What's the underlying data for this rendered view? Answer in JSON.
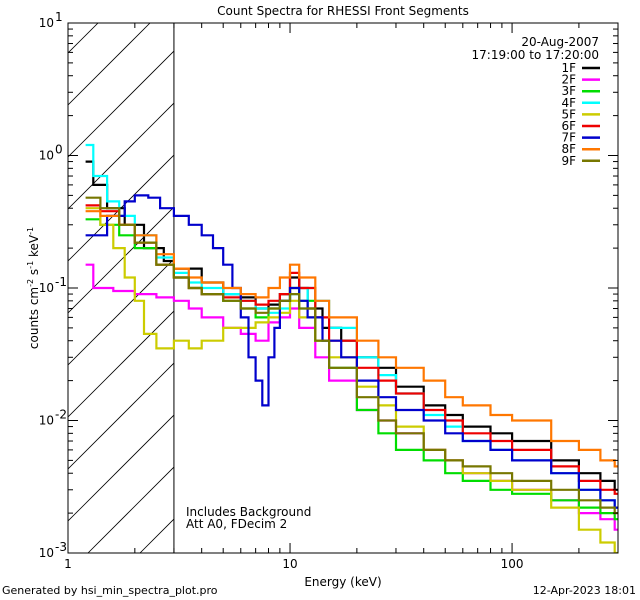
{
  "chart_data": {
    "type": "line",
    "title": "Count Spectra for RHESSI Front Segments",
    "xlabel": "Energy (keV)",
    "ylabel_parts": [
      "counts cm",
      "-2",
      " s",
      "-1",
      " keV",
      "-1"
    ],
    "xscale": "log",
    "yscale": "log",
    "xlim": [
      1,
      300
    ],
    "ylim": [
      0.001,
      10
    ],
    "x_ticks": [
      {
        "v": 1,
        "label": "1"
      },
      {
        "v": 10,
        "label": "10"
      },
      {
        "v": 100,
        "label": "100"
      }
    ],
    "y_ticks": [
      {
        "v": 0.001,
        "base": "10",
        "exp": "-3"
      },
      {
        "v": 0.01,
        "base": "10",
        "exp": "-2"
      },
      {
        "v": 0.1,
        "base": "10",
        "exp": "-1"
      },
      {
        "v": 1,
        "base": "10",
        "exp": "0"
      },
      {
        "v": 10,
        "base": "10",
        "exp": "1"
      }
    ],
    "shaded_region": {
      "x": [
        1,
        3
      ],
      "style": "diagonal-hatch"
    },
    "date": "20-Aug-2007",
    "time_range": "17:19:00 to 17:20:00",
    "annotations": [
      "Includes Background",
      "Att A0, FDecim 2"
    ],
    "series": [
      {
        "name": "1F",
        "color": "#000000",
        "points": [
          [
            1.2,
            0.9
          ],
          [
            1.3,
            0.6
          ],
          [
            1.5,
            0.4
          ],
          [
            1.8,
            0.3
          ],
          [
            2.2,
            0.2
          ],
          [
            2.7,
            0.16
          ],
          [
            3,
            0.14
          ],
          [
            4,
            0.11
          ],
          [
            5,
            0.09
          ],
          [
            6,
            0.085
          ],
          [
            7,
            0.07
          ],
          [
            8,
            0.075
          ],
          [
            9,
            0.09
          ],
          [
            10,
            0.12
          ],
          [
            11,
            0.1
          ],
          [
            12,
            0.07
          ],
          [
            14,
            0.05
          ],
          [
            17,
            0.04
          ],
          [
            20,
            0.03
          ],
          [
            25,
            0.025
          ],
          [
            30,
            0.018
          ],
          [
            40,
            0.013
          ],
          [
            50,
            0.011
          ],
          [
            60,
            0.009
          ],
          [
            80,
            0.008
          ],
          [
            100,
            0.007
          ],
          [
            150,
            0.005
          ],
          [
            200,
            0.004
          ],
          [
            250,
            0.0035
          ],
          [
            290,
            0.003
          ]
        ]
      },
      {
        "name": "2F",
        "color": "#ff00ff",
        "points": [
          [
            1.2,
            0.15
          ],
          [
            1.3,
            0.1
          ],
          [
            1.6,
            0.095
          ],
          [
            2,
            0.09
          ],
          [
            2.5,
            0.085
          ],
          [
            3,
            0.08
          ],
          [
            3.5,
            0.07
          ],
          [
            4,
            0.06
          ],
          [
            5,
            0.05
          ],
          [
            6,
            0.045
          ],
          [
            7,
            0.04
          ],
          [
            8,
            0.055
          ],
          [
            9,
            0.06
          ],
          [
            10,
            0.07
          ],
          [
            11,
            0.05
          ],
          [
            13,
            0.03
          ],
          [
            15,
            0.02
          ],
          [
            20,
            0.012
          ],
          [
            25,
            0.01
          ],
          [
            30,
            0.008
          ],
          [
            40,
            0.006
          ],
          [
            50,
            0.005
          ],
          [
            60,
            0.004
          ],
          [
            80,
            0.0035
          ],
          [
            100,
            0.003
          ],
          [
            150,
            0.0025
          ],
          [
            200,
            0.002
          ],
          [
            250,
            0.0018
          ],
          [
            290,
            0.0015
          ]
        ]
      },
      {
        "name": "3F",
        "color": "#00dd00",
        "points": [
          [
            1.2,
            0.33
          ],
          [
            1.4,
            0.3
          ],
          [
            1.7,
            0.25
          ],
          [
            2,
            0.2
          ],
          [
            2.5,
            0.15
          ],
          [
            3,
            0.12
          ],
          [
            3.5,
            0.1
          ],
          [
            4,
            0.09
          ],
          [
            5,
            0.08
          ],
          [
            6,
            0.07
          ],
          [
            7,
            0.06
          ],
          [
            8,
            0.07
          ],
          [
            9,
            0.08
          ],
          [
            10,
            0.1
          ],
          [
            11,
            0.08
          ],
          [
            13,
            0.04
          ],
          [
            15,
            0.025
          ],
          [
            20,
            0.012
          ],
          [
            25,
            0.008
          ],
          [
            30,
            0.006
          ],
          [
            40,
            0.005
          ],
          [
            50,
            0.004
          ],
          [
            60,
            0.0035
          ],
          [
            80,
            0.003
          ],
          [
            100,
            0.0028
          ],
          [
            150,
            0.0025
          ],
          [
            200,
            0.0022
          ],
          [
            250,
            0.002
          ],
          [
            290,
            0.0018
          ]
        ]
      },
      {
        "name": "4F",
        "color": "#00ffff",
        "points": [
          [
            1.2,
            1.2
          ],
          [
            1.3,
            0.7
          ],
          [
            1.5,
            0.45
          ],
          [
            1.7,
            0.35
          ],
          [
            2,
            0.25
          ],
          [
            2.5,
            0.17
          ],
          [
            3,
            0.13
          ],
          [
            3.5,
            0.11
          ],
          [
            4,
            0.1
          ],
          [
            5,
            0.09
          ],
          [
            6,
            0.08
          ],
          [
            7,
            0.07
          ],
          [
            8,
            0.065
          ],
          [
            9,
            0.07
          ],
          [
            10,
            0.09
          ],
          [
            11,
            0.07
          ],
          [
            12,
            0.1
          ],
          [
            13,
            0.08
          ],
          [
            15,
            0.05
          ],
          [
            20,
            0.03
          ],
          [
            25,
            0.022
          ],
          [
            30,
            0.016
          ],
          [
            40,
            0.011
          ],
          [
            50,
            0.009
          ],
          [
            60,
            0.007
          ],
          [
            80,
            0.006
          ],
          [
            100,
            0.005
          ],
          [
            150,
            0.004
          ],
          [
            200,
            0.003
          ],
          [
            250,
            0.0025
          ],
          [
            290,
            0.0022
          ]
        ]
      },
      {
        "name": "5F",
        "color": "#cccc00",
        "points": [
          [
            1.2,
            0.4
          ],
          [
            1.4,
            0.3
          ],
          [
            1.6,
            0.2
          ],
          [
            1.8,
            0.12
          ],
          [
            2,
            0.08
          ],
          [
            2.2,
            0.045
          ],
          [
            2.5,
            0.035
          ],
          [
            3,
            0.04
          ],
          [
            3.5,
            0.035
          ],
          [
            4,
            0.04
          ],
          [
            5,
            0.05
          ],
          [
            6,
            0.05
          ],
          [
            7,
            0.055
          ],
          [
            8,
            0.06
          ],
          [
            9,
            0.065
          ],
          [
            10,
            0.08
          ],
          [
            11,
            0.06
          ],
          [
            13,
            0.04
          ],
          [
            15,
            0.03
          ],
          [
            20,
            0.018
          ],
          [
            25,
            0.013
          ],
          [
            30,
            0.009
          ],
          [
            40,
            0.006
          ],
          [
            50,
            0.005
          ],
          [
            60,
            0.004
          ],
          [
            80,
            0.0035
          ],
          [
            100,
            0.003
          ],
          [
            150,
            0.0022
          ],
          [
            200,
            0.0015
          ],
          [
            250,
            0.0012
          ],
          [
            290,
            0.001
          ]
        ]
      },
      {
        "name": "6F",
        "color": "#ee0000",
        "points": [
          [
            1.2,
            0.42
          ],
          [
            1.4,
            0.38
          ],
          [
            1.7,
            0.3
          ],
          [
            2,
            0.22
          ],
          [
            2.5,
            0.15
          ],
          [
            3,
            0.12
          ],
          [
            3.5,
            0.1
          ],
          [
            4,
            0.09
          ],
          [
            5,
            0.085
          ],
          [
            6,
            0.08
          ],
          [
            7,
            0.075
          ],
          [
            8,
            0.08
          ],
          [
            9,
            0.09
          ],
          [
            10,
            0.13
          ],
          [
            11,
            0.1
          ],
          [
            13,
            0.06
          ],
          [
            15,
            0.04
          ],
          [
            20,
            0.025
          ],
          [
            25,
            0.02
          ],
          [
            30,
            0.016
          ],
          [
            40,
            0.012
          ],
          [
            50,
            0.01
          ],
          [
            60,
            0.008
          ],
          [
            80,
            0.007
          ],
          [
            100,
            0.006
          ],
          [
            150,
            0.0045
          ],
          [
            200,
            0.0035
          ],
          [
            250,
            0.003
          ],
          [
            290,
            0.0028
          ]
        ]
      },
      {
        "name": "7F",
        "color": "#0000cc",
        "points": [
          [
            1.2,
            0.25
          ],
          [
            1.5,
            0.35
          ],
          [
            1.8,
            0.45
          ],
          [
            2,
            0.5
          ],
          [
            2.3,
            0.48
          ],
          [
            2.6,
            0.4
          ],
          [
            3,
            0.35
          ],
          [
            3.5,
            0.3
          ],
          [
            4,
            0.25
          ],
          [
            4.5,
            0.2
          ],
          [
            5,
            0.15
          ],
          [
            5.5,
            0.1
          ],
          [
            6,
            0.06
          ],
          [
            6.5,
            0.03
          ],
          [
            7,
            0.02
          ],
          [
            7.5,
            0.013
          ],
          [
            8,
            0.03
          ],
          [
            8.5,
            0.05
          ],
          [
            9,
            0.08
          ],
          [
            10,
            0.1
          ],
          [
            11,
            0.08
          ],
          [
            12,
            0.06
          ],
          [
            14,
            0.04
          ],
          [
            17,
            0.03
          ],
          [
            20,
            0.02
          ],
          [
            25,
            0.015
          ],
          [
            30,
            0.012
          ],
          [
            40,
            0.01
          ],
          [
            50,
            0.008
          ],
          [
            60,
            0.007
          ],
          [
            80,
            0.006
          ],
          [
            100,
            0.005
          ],
          [
            150,
            0.004
          ],
          [
            200,
            0.003
          ],
          [
            250,
            0.0025
          ],
          [
            290,
            0.0022
          ]
        ]
      },
      {
        "name": "8F",
        "color": "#ff7700",
        "points": [
          [
            1.2,
            0.38
          ],
          [
            1.4,
            0.35
          ],
          [
            1.7,
            0.3
          ],
          [
            2,
            0.25
          ],
          [
            2.5,
            0.18
          ],
          [
            3,
            0.14
          ],
          [
            3.5,
            0.12
          ],
          [
            4,
            0.11
          ],
          [
            5,
            0.1
          ],
          [
            6,
            0.09
          ],
          [
            7,
            0.085
          ],
          [
            8,
            0.1
          ],
          [
            9,
            0.12
          ],
          [
            10,
            0.15
          ],
          [
            11,
            0.12
          ],
          [
            13,
            0.08
          ],
          [
            15,
            0.06
          ],
          [
            20,
            0.04
          ],
          [
            25,
            0.03
          ],
          [
            30,
            0.025
          ],
          [
            40,
            0.02
          ],
          [
            50,
            0.015
          ],
          [
            60,
            0.013
          ],
          [
            80,
            0.011
          ],
          [
            100,
            0.01
          ],
          [
            150,
            0.007
          ],
          [
            200,
            0.006
          ],
          [
            250,
            0.005
          ],
          [
            290,
            0.0045
          ]
        ]
      },
      {
        "name": "9F",
        "color": "#777700",
        "points": [
          [
            1.2,
            0.48
          ],
          [
            1.4,
            0.4
          ],
          [
            1.7,
            0.3
          ],
          [
            2,
            0.22
          ],
          [
            2.5,
            0.15
          ],
          [
            3,
            0.12
          ],
          [
            3.5,
            0.1
          ],
          [
            4,
            0.09
          ],
          [
            5,
            0.08
          ],
          [
            6,
            0.07
          ],
          [
            7,
            0.065
          ],
          [
            8,
            0.07
          ],
          [
            9,
            0.08
          ],
          [
            10,
            0.09
          ],
          [
            11,
            0.07
          ],
          [
            13,
            0.04
          ],
          [
            15,
            0.025
          ],
          [
            20,
            0.015
          ],
          [
            25,
            0.01
          ],
          [
            30,
            0.008
          ],
          [
            40,
            0.006
          ],
          [
            50,
            0.005
          ],
          [
            60,
            0.0045
          ],
          [
            80,
            0.004
          ],
          [
            100,
            0.0035
          ],
          [
            150,
            0.003
          ],
          [
            200,
            0.0025
          ],
          [
            250,
            0.0022
          ],
          [
            290,
            0.002
          ]
        ]
      }
    ]
  },
  "footer": {
    "left": "Generated by hsi_min_spectra_plot.pro",
    "right": "12-Apr-2023 18:01"
  }
}
